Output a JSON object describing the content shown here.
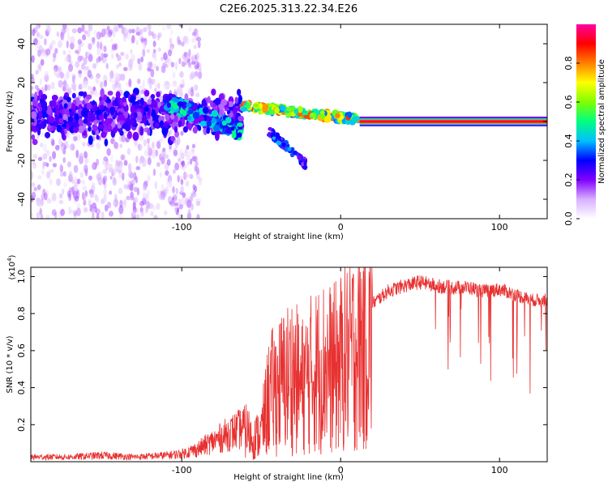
{
  "title": "C2E6.2025.313.22.34.E26",
  "chart_data": [
    {
      "type": "heatmap",
      "xlabel": "Height of straight line (km)",
      "ylabel": "Frequency (Hz)",
      "xlim": [
        -195,
        130
      ],
      "ylim": [
        -50,
        50
      ],
      "xticks": [
        -100,
        0,
        100
      ],
      "xtick_labels": [
        "-100",
        "0",
        "100"
      ],
      "yticks": [
        -40,
        -20,
        0,
        20,
        40
      ],
      "ytick_labels": [
        "-40",
        "-20",
        "0",
        "20",
        "40"
      ],
      "colorbar": {
        "label": "Normalized spectral amplitude",
        "range": [
          0,
          1
        ],
        "ticks": [
          0.0,
          0.2,
          0.4,
          0.6,
          0.8
        ],
        "tick_labels": [
          "0.0",
          "0.2",
          "0.4",
          "0.6",
          "0.8"
        ],
        "colormap": [
          "#ffffff",
          "#d8b0ff",
          "#8000ff",
          "#0000ff",
          "#00c0ff",
          "#00ff80",
          "#80ff00",
          "#ffff00",
          "#ff8000",
          "#ff0000",
          "#ff00a0"
        ]
      },
      "features": [
        {
          "name": "noise-region",
          "x_range": [
            -195,
            -88
          ],
          "freq_range": [
            -50,
            50
          ],
          "amplitude": 0.15
        },
        {
          "name": "main-trace-left",
          "x_range": [
            -195,
            -62
          ],
          "freq_center": 3,
          "freq_spread": 10,
          "amplitude": 0.22
        },
        {
          "name": "descending-trace",
          "x_range": [
            -110,
            -62
          ],
          "freq_start": 10,
          "freq_end": -5,
          "amplitude": 0.35
        },
        {
          "name": "upper-branch",
          "x_range": [
            -62,
            12
          ],
          "freq_start": 8,
          "freq_end": 1,
          "amplitude": 0.6
        },
        {
          "name": "lower-branch",
          "x_range": [
            -45,
            -22
          ],
          "freq_start": -5,
          "freq_end": -22,
          "amplitude": 0.28
        },
        {
          "name": "steady-line",
          "x_range": [
            12,
            130
          ],
          "freq_center": 0,
          "amplitude": 1.0
        }
      ]
    },
    {
      "type": "line",
      "xlabel": "Height of straight line (km)",
      "ylabel": "SNR (10 * v/v)",
      "y_scale_label": "(x10",
      "y_scale_exponent": "4",
      "y_scale_suffix": ")",
      "xlim": [
        -195,
        130
      ],
      "ylim": [
        0,
        1.05
      ],
      "xticks": [
        -100,
        0,
        100
      ],
      "xtick_labels": [
        "-100",
        "0",
        "100"
      ],
      "yticks": [
        0.2,
        0.4,
        0.6,
        0.8,
        1.0
      ],
      "ytick_labels": [
        "0.2",
        "0.4",
        "0.6",
        "0.8",
        "1.0"
      ],
      "color": "#e83030",
      "series": [
        {
          "name": "SNR envelope",
          "x": [
            -195,
            -170,
            -150,
            -130,
            -110,
            -100,
            -90,
            -80,
            -70,
            -60,
            -55,
            -50,
            -45,
            -40,
            -35,
            -30,
            -25,
            -20,
            -15,
            -10,
            -5,
            0,
            5,
            10,
            15,
            20,
            30,
            40,
            50,
            60,
            70,
            80,
            90,
            100,
            110,
            120,
            130
          ],
          "y": [
            0.03,
            0.03,
            0.04,
            0.03,
            0.04,
            0.05,
            0.08,
            0.13,
            0.18,
            0.22,
            0.15,
            0.2,
            0.45,
            0.5,
            0.55,
            0.6,
            0.5,
            0.58,
            0.62,
            0.65,
            0.62,
            0.66,
            0.72,
            0.78,
            0.82,
            0.88,
            0.95,
            0.98,
            1.0,
            0.98,
            0.97,
            0.97,
            0.95,
            0.96,
            0.93,
            0.9,
            0.9
          ]
        }
      ]
    }
  ]
}
